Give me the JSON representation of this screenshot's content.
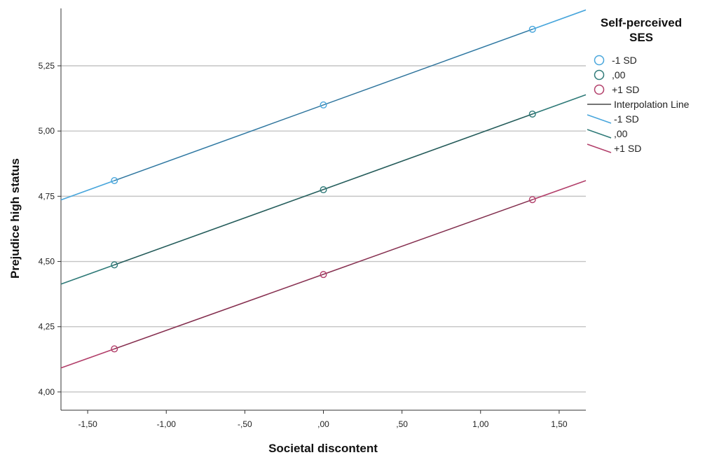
{
  "chart_data": {
    "type": "line",
    "title": "",
    "xlabel": "Societal discontent",
    "ylabel": "Prejudice high status",
    "xlim": [
      -1.67,
      1.67
    ],
    "ylim": [
      3.93,
      5.47
    ],
    "x_ticks": [
      -1.5,
      -1.0,
      -0.5,
      0.0,
      0.5,
      1.0,
      1.5
    ],
    "x_tick_labels": [
      "-1,50",
      "-1,00",
      "-,50",
      ",00",
      ",50",
      "1,00",
      "1,50"
    ],
    "y_ticks": [
      4.0,
      4.25,
      4.5,
      4.75,
      5.0,
      5.25
    ],
    "y_tick_labels": [
      "4,00",
      "4,25",
      "4,50",
      "4,75",
      "5,00",
      "5,25"
    ],
    "grid": "horizontal",
    "legend": {
      "title_lines": [
        "Self-perceived",
        "SES"
      ],
      "placement": "right",
      "marker_entries": [
        "-1 SD",
        ",00",
        "+1 SD"
      ],
      "interpolation_label": "Interpolation Line",
      "line_entries": [
        "-1 SD",
        ",00",
        "+1 SD"
      ]
    },
    "series": [
      {
        "name": "-1 SD",
        "color": "#48a6dc",
        "x": [
          -1.33,
          0.0,
          1.33
        ],
        "y": [
          4.81,
          5.1,
          5.39
        ]
      },
      {
        "name": ",00",
        "color": "#2f7a78",
        "x": [
          -1.33,
          0.0,
          1.33
        ],
        "y": [
          4.487,
          4.775,
          5.065
        ]
      },
      {
        "name": "+1 SD",
        "color": "#b23f6a",
        "x": [
          -1.33,
          0.0,
          1.33
        ],
        "y": [
          4.165,
          4.45,
          4.737
        ]
      }
    ],
    "interpolation_color": "#222222"
  }
}
